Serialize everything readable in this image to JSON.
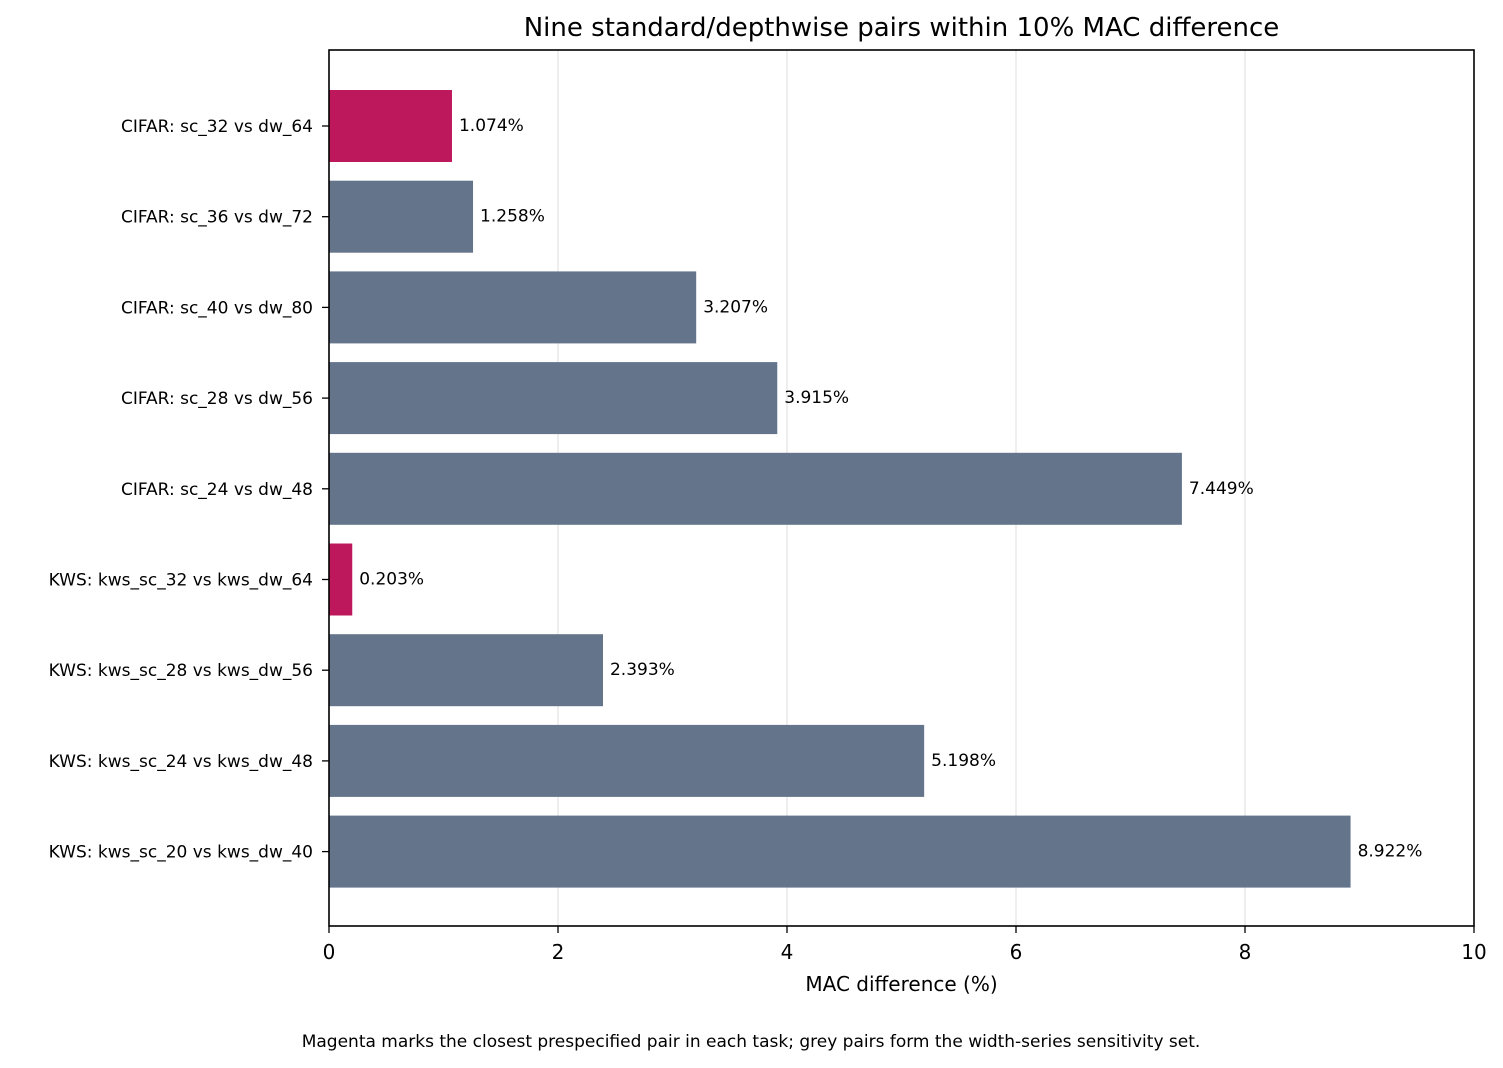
{
  "chart_data": {
    "type": "bar",
    "orientation": "horizontal",
    "title": "Nine standard/depthwise pairs within 10% MAC difference",
    "xlabel": "MAC difference (%)",
    "ylabel": "",
    "xlim": [
      0,
      10
    ],
    "xticks": [
      "0",
      "2",
      "4",
      "6",
      "8",
      "10"
    ],
    "grid": "vertical",
    "categories": [
      "CIFAR: sc_32 vs dw_64",
      "CIFAR: sc_36 vs dw_72",
      "CIFAR: sc_40 vs dw_80",
      "CIFAR: sc_28 vs dw_56",
      "CIFAR: sc_24 vs dw_48",
      "KWS: kws_sc_32 vs kws_dw_64",
      "KWS: kws_sc_28 vs kws_dw_56",
      "KWS: kws_sc_24 vs kws_dw_48",
      "KWS: kws_sc_20 vs kws_dw_40"
    ],
    "values": [
      1.074,
      1.258,
      3.207,
      3.915,
      7.449,
      0.203,
      2.393,
      5.198,
      8.922
    ],
    "data_labels": [
      "1.074%",
      "1.258%",
      "3.207%",
      "3.915%",
      "7.449%",
      "0.203%",
      "2.393%",
      "5.198%",
      "8.922%"
    ],
    "highlighted": [
      true,
      false,
      false,
      false,
      false,
      true,
      false,
      false,
      false
    ],
    "colors": {
      "highlight": "#be185d",
      "default": "#64748b",
      "grid": "#e5e5e5"
    },
    "caption": "Magenta marks the closest prespecified pair in each task; grey pairs form the width-series sensitivity set."
  }
}
